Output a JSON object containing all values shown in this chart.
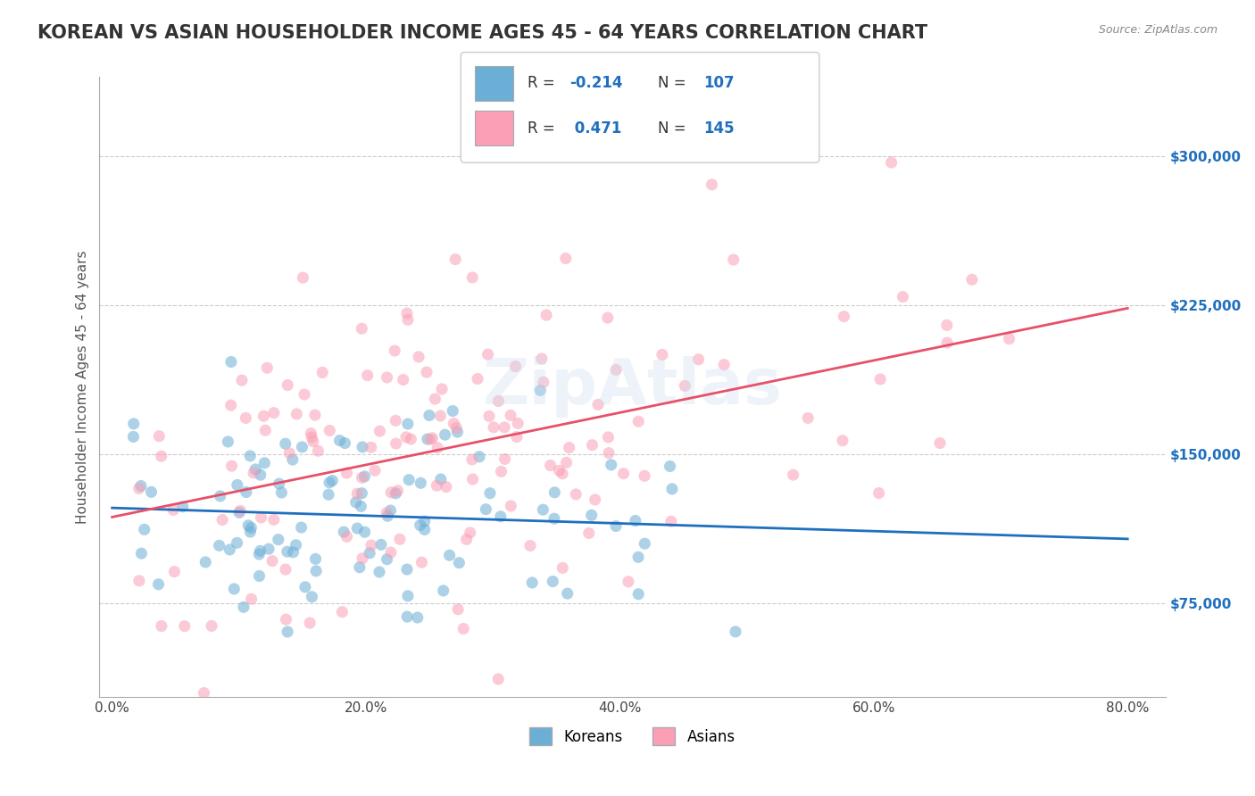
{
  "title": "KOREAN VS ASIAN HOUSEHOLDER INCOME AGES 45 - 64 YEARS CORRELATION CHART",
  "source": "Source: ZipAtlas.com",
  "ylabel": "Householder Income Ages 45 - 64 years",
  "xlabel_ticks": [
    "0.0%",
    "20.0%",
    "40.0%",
    "60.0%",
    "80.0%"
  ],
  "yticks": [
    75000,
    150000,
    225000,
    300000
  ],
  "ytick_labels": [
    "$75,000",
    "$150,000",
    "$225,000",
    "$300,000"
  ],
  "xlim": [
    -0.5,
    82
  ],
  "ylim": [
    30000,
    330000
  ],
  "korean_R": -0.214,
  "korean_N": 107,
  "asian_R": 0.471,
  "asian_N": 145,
  "korean_color": "#6baed6",
  "asian_color": "#fa9fb5",
  "korean_line_color": "#1f6fbf",
  "asian_line_color": "#e8506a",
  "bg_color": "#ffffff",
  "watermark": "ZipAtlas",
  "title_fontsize": 15,
  "label_fontsize": 11,
  "tick_fontsize": 11,
  "legend_fontsize": 13
}
